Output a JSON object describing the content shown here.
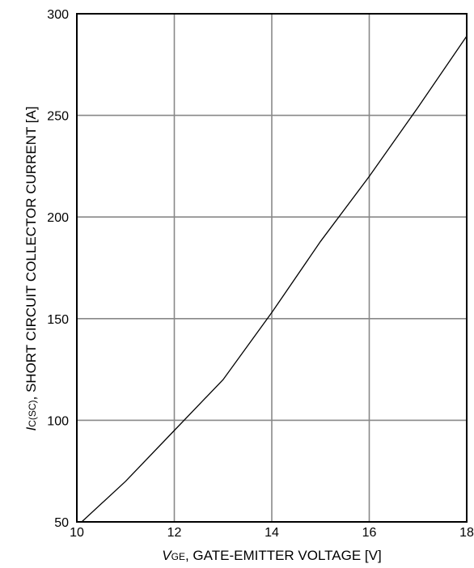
{
  "chart_data": {
    "type": "line",
    "xlabel": {
      "symbol": "V",
      "subscript": "GE",
      "text": ", GATE-EMITTER VOLTAGE [V]"
    },
    "ylabel": {
      "symbol": "I",
      "subscript": "C(SC)",
      "text": ", SHORT CIRCUIT COLLECTOR CURRENT [A]"
    },
    "xlim": [
      10,
      18
    ],
    "ylim": [
      50,
      300
    ],
    "xticks": [
      "10",
      "12",
      "14",
      "16",
      "18"
    ],
    "yticks": [
      "50",
      "100",
      "150",
      "200",
      "250",
      "300"
    ],
    "grid": true,
    "series": [
      {
        "x": [
          10.1,
          11,
          12,
          13,
          14,
          15,
          16,
          17,
          18
        ],
        "y": [
          50,
          70,
          95,
          120,
          153,
          188,
          220,
          254,
          289
        ]
      }
    ]
  }
}
